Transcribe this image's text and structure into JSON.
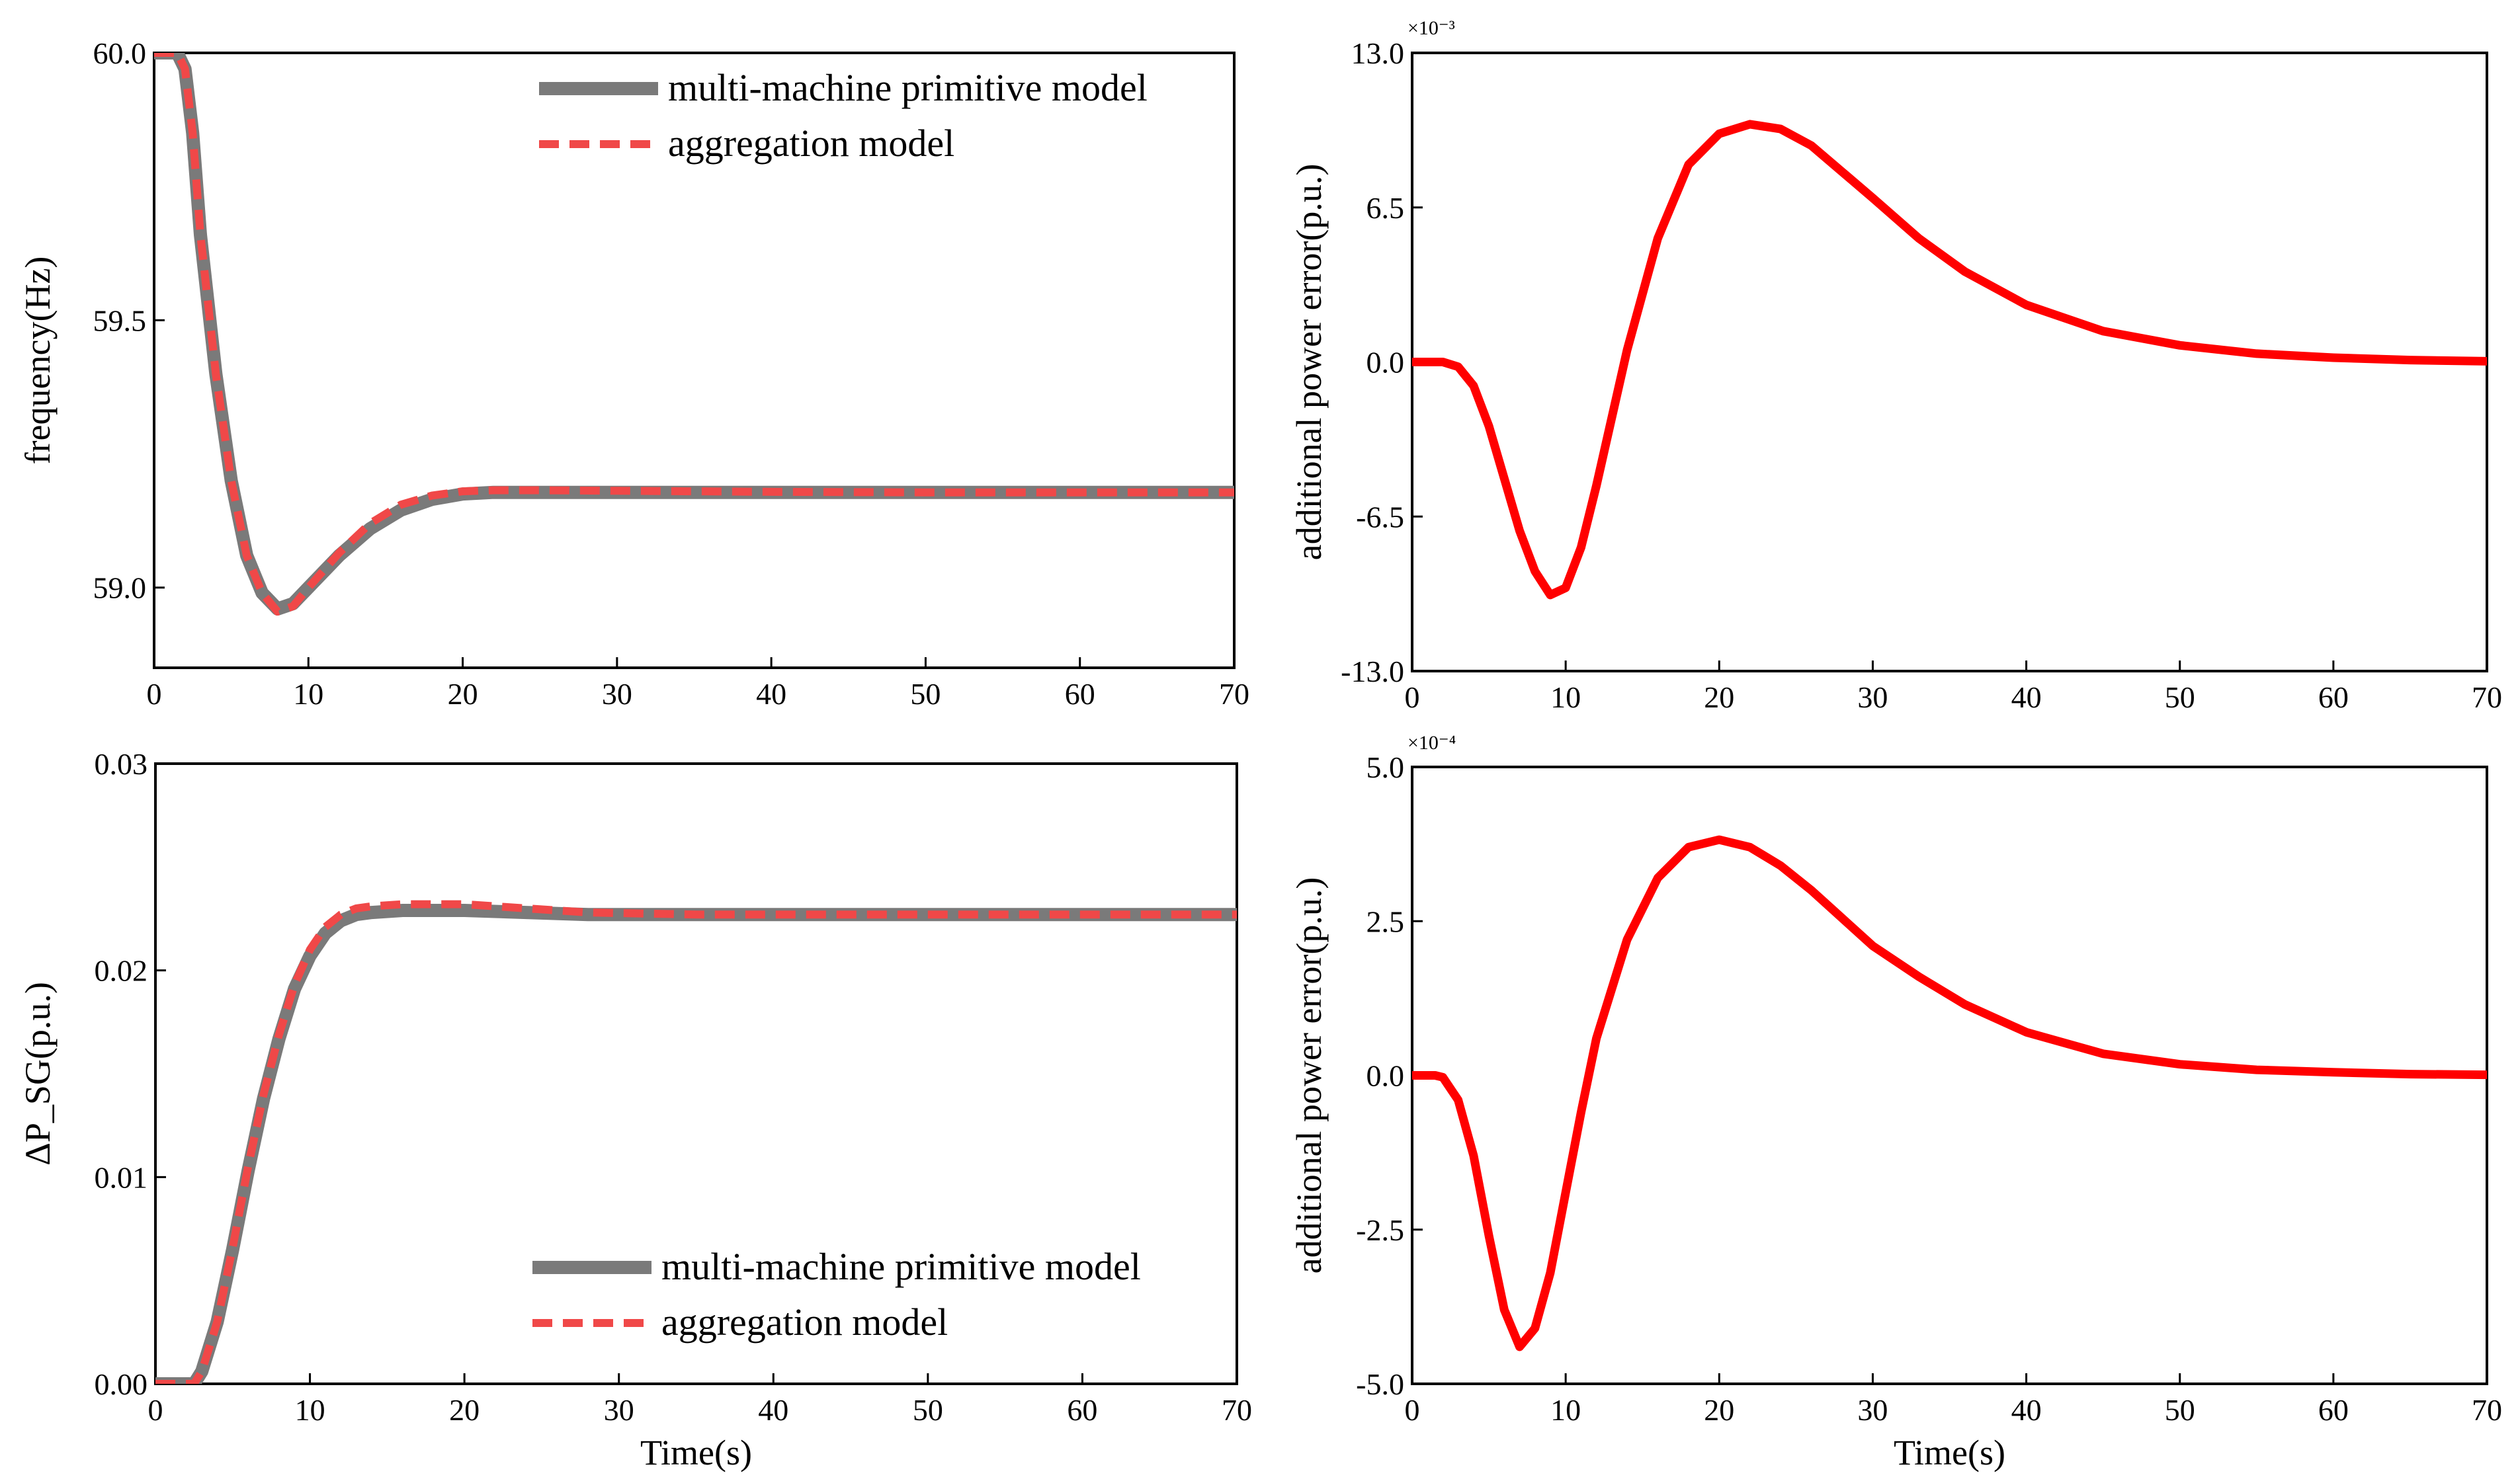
{
  "colors": {
    "primitive": "#7a7a7a",
    "aggregation": "#f04848",
    "error": "#ff0000",
    "axis": "#000000"
  },
  "chart_data": [
    {
      "id": "freq",
      "type": "line",
      "title": "",
      "xlabel": "",
      "ylabel": "frequency(Hz)",
      "xlim": [
        0,
        70
      ],
      "ylim": [
        58.85,
        60.0
      ],
      "xticks": [
        "0",
        "10",
        "20",
        "30",
        "40",
        "50",
        "60",
        "70"
      ],
      "xtick_values": [
        0,
        10,
        20,
        30,
        40,
        50,
        60,
        70
      ],
      "yticks": [
        "59.0",
        "59.5",
        "60.0"
      ],
      "ytick_values": [
        59.0,
        59.5,
        60.0
      ],
      "legend_position": "top-right",
      "series": [
        {
          "name": "multi-machine primitive model",
          "style": "solid",
          "x": [
            0,
            1.5,
            2,
            2.5,
            3,
            4,
            5,
            6,
            7,
            8,
            9,
            10,
            12,
            14,
            16,
            18,
            20,
            22,
            25,
            30,
            40,
            50,
            60,
            70
          ],
          "y": [
            60.0,
            60.0,
            59.97,
            59.85,
            59.66,
            59.4,
            59.2,
            59.06,
            58.99,
            58.96,
            58.97,
            59.0,
            59.06,
            59.11,
            59.145,
            59.165,
            59.175,
            59.178,
            59.178,
            59.178,
            59.178,
            59.178,
            59.178,
            59.178
          ]
        },
        {
          "name": "aggregation model",
          "style": "dashed",
          "x": [
            0,
            1.5,
            2,
            2.5,
            3,
            4,
            5,
            6,
            7,
            8,
            9,
            10,
            12,
            14,
            16,
            18,
            20,
            22,
            25,
            30,
            40,
            50,
            60,
            70
          ],
          "y": [
            60.0,
            60.0,
            59.97,
            59.85,
            59.66,
            59.4,
            59.2,
            59.06,
            58.99,
            58.955,
            58.965,
            59.0,
            59.065,
            59.12,
            59.155,
            59.172,
            59.18,
            59.182,
            59.182,
            59.181,
            59.179,
            59.178,
            59.178,
            59.178
          ]
        }
      ]
    },
    {
      "id": "err1",
      "type": "line",
      "title": "",
      "xlabel": "",
      "ylabel": "additional power error(p.u.)",
      "exponent_label": "×10⁻³",
      "xlim": [
        0,
        70
      ],
      "ylim": [
        -13.0,
        13.0
      ],
      "xticks": [
        "0",
        "10",
        "20",
        "30",
        "40",
        "50",
        "60",
        "70"
      ],
      "xtick_values": [
        0,
        10,
        20,
        30,
        40,
        50,
        60,
        70
      ],
      "yticks": [
        "-13.0",
        "-6.5",
        "0.0",
        "6.5",
        "13.0"
      ],
      "ytick_values": [
        -13.0,
        -6.5,
        0.0,
        6.5,
        13.0
      ],
      "series": [
        {
          "name": "additional power error",
          "style": "solid",
          "x": [
            0,
            2,
            3,
            4,
            5,
            6,
            7,
            8,
            9,
            10,
            11,
            12,
            14,
            16,
            18,
            20,
            22,
            24,
            26,
            28,
            30,
            33,
            36,
            40,
            45,
            50,
            55,
            60,
            65,
            70
          ],
          "y": [
            0.0,
            0.0,
            -0.2,
            -1.0,
            -2.7,
            -4.9,
            -7.1,
            -8.8,
            -9.8,
            -9.5,
            -7.8,
            -5.2,
            0.5,
            5.2,
            8.3,
            9.6,
            10.0,
            9.8,
            9.1,
            8.0,
            6.9,
            5.2,
            3.8,
            2.4,
            1.3,
            0.7,
            0.35,
            0.18,
            0.08,
            0.03
          ]
        }
      ]
    },
    {
      "id": "psg",
      "type": "line",
      "title": "",
      "xlabel": "Time(s)",
      "ylabel": "ΔP_SG(p.u.)",
      "xlim": [
        0,
        70
      ],
      "ylim": [
        0.0,
        0.03
      ],
      "xticks": [
        "0",
        "10",
        "20",
        "30",
        "40",
        "50",
        "60",
        "70"
      ],
      "xtick_values": [
        0,
        10,
        20,
        30,
        40,
        50,
        60,
        70
      ],
      "yticks": [
        "0.00",
        "0.01",
        "0.02",
        "0.03"
      ],
      "ytick_values": [
        0.0,
        0.01,
        0.02,
        0.03
      ],
      "legend_position": "bottom-right",
      "series": [
        {
          "name": "multi-machine primitive model",
          "style": "solid",
          "x": [
            0,
            2,
            2.5,
            3,
            4,
            5,
            6,
            7,
            8,
            9,
            10,
            11,
            12,
            13,
            14,
            16,
            18,
            20,
            24,
            28,
            35,
            40,
            50,
            60,
            70
          ],
          "y": [
            0.0,
            0.0,
            0.0,
            0.0006,
            0.003,
            0.0065,
            0.0103,
            0.0138,
            0.0167,
            0.0191,
            0.0207,
            0.0218,
            0.0224,
            0.0227,
            0.0228,
            0.0229,
            0.0229,
            0.0229,
            0.0228,
            0.0227,
            0.0227,
            0.0227,
            0.0227,
            0.0227,
            0.0227
          ]
        },
        {
          "name": "aggregation model",
          "style": "dashed",
          "x": [
            0,
            2,
            2.5,
            3,
            4,
            5,
            6,
            7,
            8,
            9,
            10,
            11,
            12,
            13,
            14,
            16,
            18,
            20,
            24,
            28,
            35,
            40,
            50,
            60,
            70
          ],
          "y": [
            0.0,
            0.0,
            0.0,
            0.0006,
            0.003,
            0.0066,
            0.0105,
            0.014,
            0.0169,
            0.0193,
            0.021,
            0.0221,
            0.0227,
            0.023,
            0.0231,
            0.0232,
            0.0232,
            0.0232,
            0.023,
            0.0228,
            0.0227,
            0.0227,
            0.0227,
            0.0227,
            0.0227
          ]
        }
      ]
    },
    {
      "id": "err2",
      "type": "line",
      "title": "",
      "xlabel": "Time(s)",
      "ylabel": "additional power error(p.u.)",
      "exponent_label": "×10⁻⁴",
      "xlim": [
        0,
        70
      ],
      "ylim": [
        -5.0,
        5.0
      ],
      "xticks": [
        "0",
        "10",
        "20",
        "30",
        "40",
        "50",
        "60",
        "70"
      ],
      "xtick_values": [
        0,
        10,
        20,
        30,
        40,
        50,
        60,
        70
      ],
      "yticks": [
        "-5.0",
        "-2.5",
        "0.0",
        "2.5",
        "5.0"
      ],
      "ytick_values": [
        -5.0,
        -2.5,
        0.0,
        2.5,
        5.0
      ],
      "series": [
        {
          "name": "additional power error",
          "style": "solid",
          "x": [
            0,
            1.5,
            2,
            3,
            4,
            5,
            6,
            7,
            8,
            9,
            10,
            11,
            12,
            14,
            16,
            18,
            20,
            22,
            24,
            26,
            28,
            30,
            33,
            36,
            40,
            45,
            50,
            55,
            60,
            65,
            70
          ],
          "y": [
            0.0,
            0.0,
            -0.03,
            -0.4,
            -1.3,
            -2.6,
            -3.8,
            -4.4,
            -4.1,
            -3.2,
            -1.9,
            -0.6,
            0.6,
            2.2,
            3.2,
            3.7,
            3.82,
            3.7,
            3.4,
            3.0,
            2.55,
            2.1,
            1.6,
            1.15,
            0.7,
            0.35,
            0.18,
            0.09,
            0.05,
            0.02,
            0.01
          ]
        }
      ]
    }
  ]
}
